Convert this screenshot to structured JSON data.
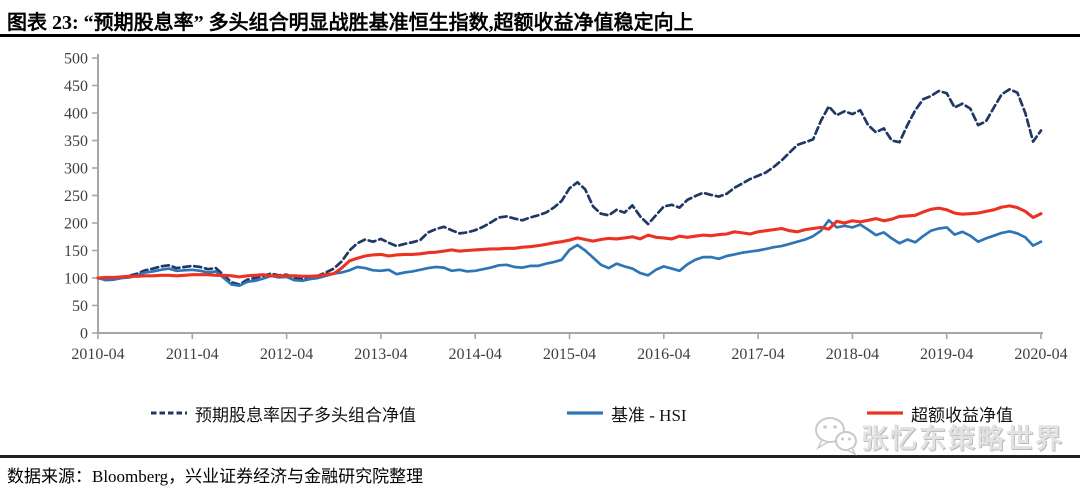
{
  "title": "图表 23: “预期股息率” 多头组合明显战胜基准恒生指数,超额收益净值稳定向上",
  "source": "数据来源：Bloomberg，兴业证券经济与金融研究院整理",
  "watermark": {
    "text": "张忆东策略世界",
    "icon": "wechat-icon"
  },
  "colors": {
    "portfolio": "#1F3864",
    "benchmark": "#2E75B6",
    "excess": "#EC3323",
    "axis": "#A6A6A6",
    "tick_text": "#3F3F3F"
  },
  "chart_data": {
    "type": "line",
    "title": "“预期股息率”多头组合 vs 基准恒生指数 净值走势",
    "xlabel": "",
    "ylabel": "",
    "ylim": [
      0,
      500
    ],
    "y_ticks": [
      0,
      50,
      100,
      150,
      200,
      250,
      300,
      350,
      400,
      450,
      500
    ],
    "x_tick_labels": [
      "2010-04",
      "2011-04",
      "2012-04",
      "2013-04",
      "2014-04",
      "2015-04",
      "2016-04",
      "2017-04",
      "2018-04",
      "2019-04",
      "2020-04"
    ],
    "x_unit": "monthly, 2010-04 to 2020-04 (121 points per series)",
    "grid": false,
    "legend_position": "bottom",
    "series": [
      {
        "name": "预期股息率因子多头组合净值",
        "style": "dashed",
        "color": "#1F3864",
        "values": [
          100,
          97,
          98,
          102,
          104,
          108,
          114,
          117,
          121,
          123,
          118,
          120,
          122,
          120,
          116,
          118,
          105,
          92,
          88,
          97,
          100,
          104,
          108,
          105,
          106,
          100,
          98,
          101,
          104,
          110,
          117,
          130,
          150,
          163,
          170,
          166,
          171,
          164,
          158,
          162,
          165,
          169,
          183,
          189,
          193,
          187,
          181,
          183,
          187,
          193,
          201,
          210,
          212,
          208,
          205,
          210,
          214,
          219,
          228,
          240,
          263,
          274,
          261,
          230,
          217,
          214,
          224,
          219,
          232,
          212,
          198,
          214,
          230,
          233,
          228,
          242,
          249,
          255,
          251,
          248,
          253,
          264,
          272,
          280,
          286,
          292,
          302,
          314,
          328,
          342,
          347,
          352,
          386,
          412,
          396,
          403,
          398,
          405,
          378,
          365,
          372,
          350,
          347,
          378,
          405,
          425,
          431,
          440,
          436,
          410,
          417,
          408,
          378,
          385,
          410,
          434,
          443,
          437,
          400,
          348,
          368
        ]
      },
      {
        "name": "基准 - HSI",
        "style": "solid",
        "color": "#2E75B6",
        "values": [
          100,
          96,
          97,
          100,
          101,
          105,
          110,
          112,
          115,
          117,
          113,
          114,
          115,
          113,
          110,
          112,
          100,
          88,
          86,
          93,
          95,
          99,
          104,
          101,
          102,
          96,
          95,
          98,
          100,
          104,
          108,
          110,
          114,
          120,
          118,
          114,
          113,
          115,
          107,
          110,
          112,
          115,
          118,
          120,
          119,
          113,
          115,
          112,
          113,
          116,
          119,
          123,
          124,
          120,
          119,
          122,
          122,
          126,
          129,
          133,
          151,
          160,
          150,
          137,
          124,
          118,
          126,
          121,
          117,
          109,
          105,
          115,
          121,
          117,
          113,
          125,
          133,
          138,
          138,
          135,
          140,
          143,
          146,
          148,
          150,
          153,
          156,
          158,
          162,
          166,
          170,
          176,
          186,
          205,
          192,
          195,
          192,
          197,
          188,
          178,
          183,
          172,
          163,
          170,
          165,
          176,
          186,
          190,
          192,
          179,
          184,
          177,
          166,
          172,
          177,
          182,
          185,
          181,
          174,
          159,
          166
        ]
      },
      {
        "name": "超额收益净值",
        "style": "solid",
        "color": "#EC3323",
        "values": [
          100,
          101,
          101,
          102,
          103,
          103,
          104,
          104,
          105,
          105,
          104,
          105,
          106,
          106,
          106,
          105,
          105,
          104,
          102,
          104,
          105,
          106,
          104,
          104,
          104,
          104,
          103,
          103,
          104,
          106,
          108,
          118,
          131,
          136,
          140,
          142,
          143,
          140,
          142,
          143,
          143,
          144,
          146,
          147,
          149,
          151,
          149,
          150,
          151,
          152,
          153,
          153,
          154,
          154,
          156,
          157,
          159,
          161,
          164,
          166,
          169,
          173,
          170,
          167,
          170,
          172,
          171,
          173,
          175,
          171,
          178,
          174,
          173,
          171,
          176,
          174,
          176,
          178,
          177,
          179,
          180,
          184,
          182,
          180,
          184,
          186,
          188,
          190,
          186,
          184,
          188,
          190,
          192,
          189,
          203,
          200,
          204,
          202,
          205,
          208,
          204,
          207,
          212,
          213,
          214,
          220,
          225,
          227,
          224,
          218,
          216,
          217,
          218,
          221,
          224,
          229,
          231,
          228,
          221,
          210,
          217
        ]
      }
    ]
  }
}
